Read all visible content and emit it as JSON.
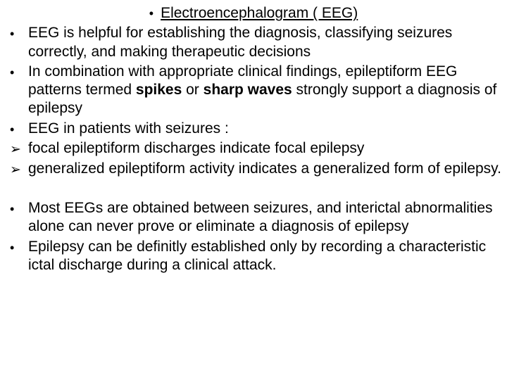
{
  "title": "Electroencephalogram ( EEG)",
  "items": [
    {
      "bullet": "•",
      "parts": [
        {
          "t": "EEG is helpful for establishing the diagnosis, classifying seizures correctly, and making therapeutic decisions",
          "b": false
        }
      ]
    },
    {
      "bullet": "•",
      "parts": [
        {
          "t": "In combination with appropriate clinical findings, epileptiform EEG patterns termed ",
          "b": false
        },
        {
          "t": "spikes",
          "b": true
        },
        {
          "t": " or ",
          "b": false
        },
        {
          "t": "sharp waves",
          "b": true
        },
        {
          "t": " strongly support a diagnosis of epilepsy",
          "b": false
        }
      ]
    },
    {
      "bullet": "•",
      "parts": [
        {
          "t": "EEG in patients with seizures :",
          "b": false
        }
      ]
    },
    {
      "bullet": "➢",
      "parts": [
        {
          "t": "focal epileptiform discharges indicate focal epilepsy",
          "b": false
        }
      ]
    },
    {
      "bullet": "➢",
      "parts": [
        {
          "t": "generalized epileptiform activity indicates a generalized form of epilepsy.",
          "b": false
        }
      ]
    },
    {
      "spacer": true
    },
    {
      "bullet": "•",
      "parts": [
        {
          "t": "Most EEGs are obtained between seizures, and interictal abnormalities alone can never prove or eliminate a diagnosis of epilepsy",
          "b": false
        }
      ]
    },
    {
      "bullet": "•",
      "parts": [
        {
          "t": "Epilepsy can be definitly established only by recording a characteristic ictal discharge during a clinical attack.",
          "b": false
        }
      ]
    }
  ]
}
